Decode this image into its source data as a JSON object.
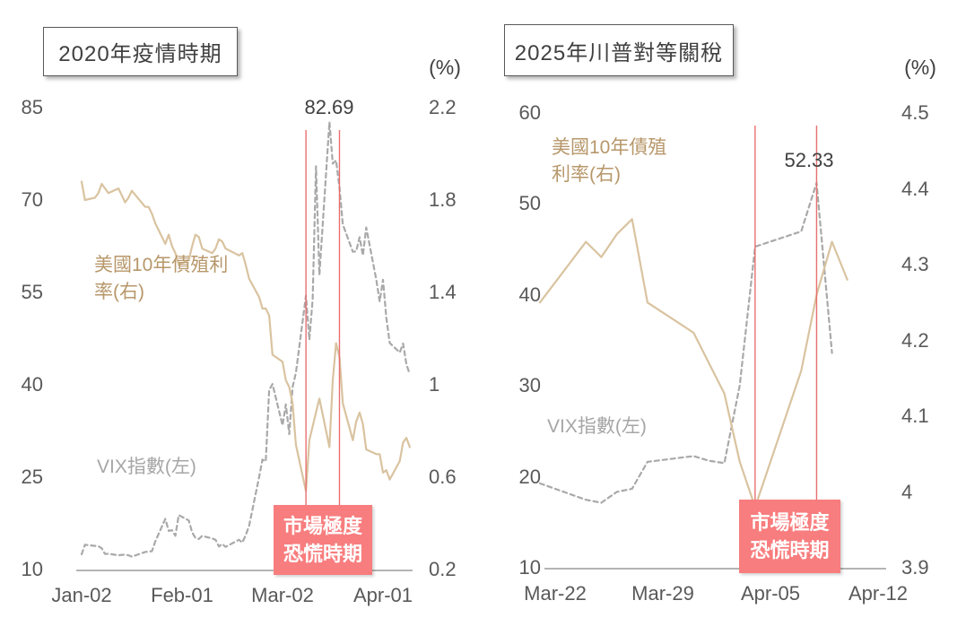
{
  "colors": {
    "yield_line": "#D9C3A0",
    "yield_label_text": "#B7976A",
    "vix_line": "#A9A9A9",
    "vix_label_text": "#A6A6A6",
    "panic_line": "#E86F6F",
    "panic_box": "#F87D7E",
    "panic_box_text": "#FFFFFF",
    "axis_line": "#9B9B9B",
    "tick_text": "#595959",
    "annotation_text": "#404040"
  },
  "chart_data": [
    {
      "type": "line",
      "title": "2020年疫情時期",
      "unit_label": "(%)",
      "legend_position": "inline-labels",
      "grid": false,
      "x_tick_labels": [
        "Jan-02",
        "Feb-01",
        "Mar-02",
        "Apr-01"
      ],
      "x_tick_days": [
        0,
        30,
        60,
        90
      ],
      "left_axis": {
        "min": 10,
        "max": 85,
        "ticks": [
          "85",
          "70",
          "55",
          "40",
          "25",
          "10"
        ]
      },
      "right_axis": {
        "min": 0.2,
        "max": 2.2,
        "ticks": [
          "2.2",
          "1.8",
          "1.4",
          "1",
          "0.6",
          "0.2"
        ]
      },
      "labels": {
        "yield_line1": "美國10年債殖利",
        "yield_line2": "率(右)",
        "vix": "VIX指數(左)"
      },
      "peak_annotation": {
        "text": "82.69",
        "day": 74,
        "value": 82.69
      },
      "panic_period": {
        "label_line1": "市場極度",
        "label_line2": "恐慌時期",
        "start_day": 67,
        "end_day": 77
      },
      "series": [
        {
          "name": "VIX指數(左)",
          "axis": "left",
          "line": "dashed",
          "color": "#A9A9A9",
          "points": [
            [
              0,
              12.47
            ],
            [
              1,
              14.02
            ],
            [
              4,
              13.85
            ],
            [
              5,
              13.79
            ],
            [
              6,
              13.45
            ],
            [
              7,
              12.54
            ],
            [
              8,
              12.56
            ],
            [
              11,
              12.32
            ],
            [
              12,
              12.39
            ],
            [
              13,
              12.42
            ],
            [
              14,
              12.32
            ],
            [
              15,
              12.1
            ],
            [
              19,
              12.85
            ],
            [
              20,
              12.91
            ],
            [
              21,
              12.98
            ],
            [
              22,
              14.56
            ],
            [
              25,
              18.23
            ],
            [
              26,
              16.28
            ],
            [
              27,
              16.39
            ],
            [
              28,
              15.49
            ],
            [
              29,
              18.84
            ],
            [
              32,
              17.97
            ],
            [
              33,
              16.05
            ],
            [
              34,
              15.15
            ],
            [
              35,
              14.96
            ],
            [
              36,
              15.47
            ],
            [
              39,
              15.04
            ],
            [
              40,
              14.83
            ],
            [
              41,
              13.74
            ],
            [
              42,
              14.15
            ],
            [
              43,
              13.68
            ],
            [
              47,
              14.83
            ],
            [
              48,
              14.38
            ],
            [
              49,
              15.56
            ],
            [
              50,
              17.08
            ],
            [
              53,
              25.03
            ],
            [
              54,
              27.85
            ],
            [
              55,
              27.56
            ],
            [
              56,
              39.16
            ],
            [
              57,
              40.11
            ],
            [
              60,
              33.42
            ],
            [
              61,
              36.82
            ],
            [
              62,
              31.99
            ],
            [
              63,
              39.62
            ],
            [
              64,
              41.94
            ],
            [
              67,
              54.46
            ],
            [
              68,
              47.3
            ],
            [
              69,
              53.9
            ],
            [
              70,
              75.47
            ],
            [
              71,
              57.83
            ],
            [
              74,
              82.69
            ],
            [
              75,
              75.91
            ],
            [
              76,
              76.45
            ],
            [
              77,
              72.0
            ],
            [
              78,
              66.04
            ],
            [
              81,
              61.59
            ],
            [
              82,
              61.67
            ],
            [
              83,
              63.95
            ],
            [
              84,
              61.0
            ],
            [
              85,
              65.54
            ],
            [
              88,
              57.08
            ],
            [
              89,
              53.54
            ],
            [
              90,
              57.06
            ],
            [
              91,
              50.91
            ],
            [
              92,
              46.8
            ],
            [
              95,
              45.24
            ],
            [
              96,
              46.7
            ],
            [
              97,
              43.35
            ],
            [
              98,
              41.67
            ]
          ]
        },
        {
          "name": "美國10年債殖利率(右)",
          "axis": "right",
          "line": "solid",
          "color": "#D9C3A0",
          "points": [
            [
              0,
              1.88
            ],
            [
              1,
              1.8
            ],
            [
              4,
              1.81
            ],
            [
              5,
              1.83
            ],
            [
              6,
              1.87
            ],
            [
              7,
              1.85
            ],
            [
              8,
              1.83
            ],
            [
              11,
              1.85
            ],
            [
              12,
              1.82
            ],
            [
              13,
              1.79
            ],
            [
              14,
              1.81
            ],
            [
              15,
              1.84
            ],
            [
              19,
              1.77
            ],
            [
              20,
              1.77
            ],
            [
              21,
              1.74
            ],
            [
              22,
              1.7
            ],
            [
              25,
              1.61
            ],
            [
              26,
              1.65
            ],
            [
              27,
              1.6
            ],
            [
              28,
              1.57
            ],
            [
              29,
              1.52
            ],
            [
              32,
              1.54
            ],
            [
              33,
              1.6
            ],
            [
              34,
              1.65
            ],
            [
              35,
              1.64
            ],
            [
              36,
              1.59
            ],
            [
              39,
              1.57
            ],
            [
              40,
              1.59
            ],
            [
              41,
              1.63
            ],
            [
              42,
              1.62
            ],
            [
              43,
              1.59
            ],
            [
              47,
              1.56
            ],
            [
              48,
              1.57
            ],
            [
              49,
              1.52
            ],
            [
              50,
              1.46
            ],
            [
              53,
              1.38
            ],
            [
              54,
              1.33
            ],
            [
              55,
              1.33
            ],
            [
              56,
              1.3
            ],
            [
              57,
              1.13
            ],
            [
              60,
              1.1
            ],
            [
              61,
              1.02
            ],
            [
              62,
              0.99
            ],
            [
              63,
              0.92
            ],
            [
              64,
              0.74
            ],
            [
              67,
              0.54
            ],
            [
              68,
              0.76
            ],
            [
              69,
              0.82
            ],
            [
              70,
              0.88
            ],
            [
              71,
              0.94
            ],
            [
              74,
              0.73
            ],
            [
              75,
              1.02
            ],
            [
              76,
              1.18
            ],
            [
              77,
              1.12
            ],
            [
              78,
              0.92
            ],
            [
              81,
              0.76
            ],
            [
              82,
              0.84
            ],
            [
              83,
              0.88
            ],
            [
              84,
              0.83
            ],
            [
              85,
              0.72
            ],
            [
              88,
              0.7
            ],
            [
              89,
              0.7
            ],
            [
              90,
              0.62
            ],
            [
              91,
              0.63
            ],
            [
              92,
              0.59
            ],
            [
              95,
              0.67
            ],
            [
              96,
              0.75
            ],
            [
              97,
              0.77
            ],
            [
              98,
              0.73
            ]
          ]
        }
      ]
    },
    {
      "type": "line",
      "title": "2025年川普對等關稅",
      "unit_label": "(%)",
      "legend_position": "inline-labels",
      "grid": false,
      "x_tick_labels": [
        "Mar-22",
        "Mar-29",
        "Apr-05",
        "Apr-12"
      ],
      "x_tick_days": [
        0,
        7,
        14,
        21
      ],
      "left_axis": {
        "min": 10,
        "max": 60,
        "ticks": [
          "60",
          "50",
          "40",
          "30",
          "20",
          "10"
        ]
      },
      "right_axis": {
        "min": 3.9,
        "max": 4.5,
        "ticks": [
          "4.5",
          "4.4",
          "4.3",
          "4.2",
          "4.1",
          "4",
          "3.9"
        ]
      },
      "labels": {
        "yield_line1": "美國10年債殖",
        "yield_line2": "利率(右)",
        "vix": "VIX指數(左)"
      },
      "peak_annotation": {
        "text": "52.33",
        "day": 17,
        "value": 52.33
      },
      "panic_period": {
        "label_line1": "市場極度",
        "label_line2": "恐慌時期",
        "start_day": 13,
        "end_day": 17
      },
      "series": [
        {
          "name": "VIX指數(左)",
          "axis": "left",
          "line": "dashed",
          "color": "#A9A9A9",
          "points": [
            [
              -1,
              19.28
            ],
            [
              2,
              17.48
            ],
            [
              3,
              17.15
            ],
            [
              4,
              18.33
            ],
            [
              5,
              18.69
            ],
            [
              6,
              21.65
            ],
            [
              9,
              22.28
            ],
            [
              10,
              21.77
            ],
            [
              11,
              21.51
            ],
            [
              12,
              30.02
            ],
            [
              13,
              45.31
            ],
            [
              16,
              46.98
            ],
            [
              17,
              52.33
            ],
            [
              18,
              33.62
            ]
          ]
        },
        {
          "name": "美國10年債殖利率(右)",
          "axis": "right",
          "line": "solid",
          "color": "#D9C3A0",
          "points": [
            [
              -1,
              4.25
            ],
            [
              2,
              4.33
            ],
            [
              3,
              4.31
            ],
            [
              4,
              4.34
            ],
            [
              5,
              4.36
            ],
            [
              6,
              4.25
            ],
            [
              9,
              4.21
            ],
            [
              10,
              4.17
            ],
            [
              11,
              4.13
            ],
            [
              12,
              4.04
            ],
            [
              13,
              3.98
            ],
            [
              16,
              4.16
            ],
            [
              17,
              4.26
            ],
            [
              18,
              4.33
            ],
            [
              19,
              4.28
            ]
          ]
        }
      ]
    }
  ]
}
